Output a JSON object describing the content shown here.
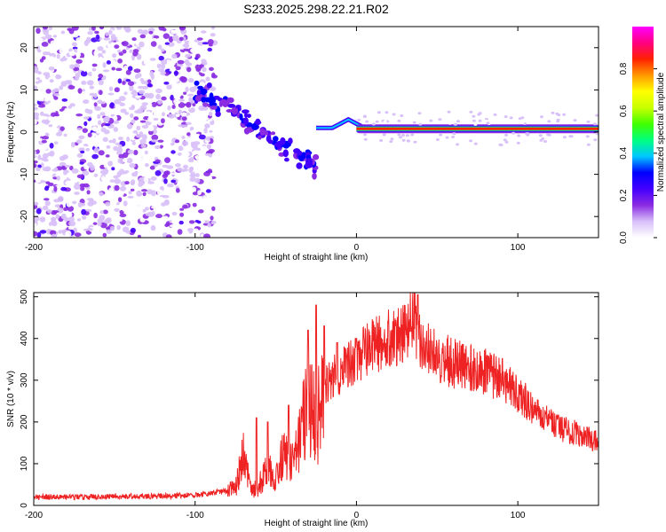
{
  "title": "S233.2025.298.22.21.R02",
  "colors": {
    "snr_line": "#ee2222",
    "frame": "#000000",
    "background": "#ffffff"
  },
  "chart_data": [
    {
      "type": "heatmap",
      "name": "spectrogram",
      "xlabel": "Height of straight line (km)",
      "ylabel": "Frequency (Hz)",
      "xlim": [
        -200,
        150
      ],
      "ylim": [
        -25,
        25
      ],
      "x_ticks": [
        "-200",
        "-100",
        "0",
        "100"
      ],
      "y_ticks": [
        "-20",
        "-10",
        "0",
        "10",
        "20"
      ],
      "colorbar": {
        "label": "Normalized spectral amplitude",
        "range": [
          0,
          1
        ],
        "ticks": [
          "0.0",
          "0.2",
          "0.4",
          "0.6",
          "0.8"
        ],
        "colormap": [
          "#ffffff",
          "#d8c0f8",
          "#8a2be2",
          "#4400ff",
          "#0000ff",
          "#00c8ff",
          "#00ff80",
          "#40ff00",
          "#c8ff00",
          "#ffff00",
          "#ff9900",
          "#ff2200",
          "#ff0080",
          "#ff00ff"
        ]
      },
      "features": {
        "noise_region_x": [
          -200,
          -80
        ],
        "noise_cutoff_x": -88,
        "descending_trace": [
          [
            -100,
            9
          ],
          [
            -90,
            8
          ],
          [
            -80,
            6
          ],
          [
            -70,
            3
          ],
          [
            -60,
            1
          ],
          [
            -50,
            -3
          ],
          [
            -40,
            -5
          ],
          [
            -30,
            -6
          ],
          [
            -25,
            -8
          ]
        ],
        "jagged_trace": [
          [
            -25,
            1
          ],
          [
            -20,
            1
          ],
          [
            -15,
            1
          ],
          [
            -10,
            2
          ],
          [
            -5,
            3
          ],
          [
            0,
            2
          ],
          [
            5,
            1
          ]
        ],
        "carrier_start_x": 0,
        "carrier_end_x": 150,
        "carrier_freq_hz": 0.8,
        "carrier_amplitude": 0.9
      }
    },
    {
      "type": "line",
      "name": "snr",
      "xlabel": "Height of straight line (km)",
      "ylabel": "SNR (10 * v/v)",
      "xlim": [
        -200,
        150
      ],
      "ylim": [
        0,
        510
      ],
      "x_ticks": [
        "-200",
        "-100",
        "0",
        "100"
      ],
      "y_ticks": [
        "0",
        "100",
        "200",
        "300",
        "400",
        "500"
      ],
      "series": [
        {
          "color": "#ee2222",
          "x": [
            -200,
            -180,
            -160,
            -140,
            -120,
            -100,
            -90,
            -80,
            -75,
            -70,
            -65,
            -60,
            -55,
            -50,
            -45,
            -40,
            -35,
            -30,
            -25,
            -20,
            -15,
            -10,
            -5,
            0,
            10,
            20,
            30,
            35,
            40,
            50,
            60,
            70,
            80,
            90,
            100,
            110,
            120,
            130,
            140,
            150
          ],
          "y": [
            20,
            20,
            20,
            22,
            22,
            25,
            30,
            35,
            40,
            120,
            30,
            50,
            90,
            70,
            120,
            100,
            170,
            250,
            200,
            280,
            310,
            320,
            340,
            350,
            380,
            400,
            410,
            460,
            380,
            360,
            340,
            330,
            320,
            300,
            270,
            230,
            200,
            180,
            170,
            150
          ]
        }
      ],
      "spikes": [
        [
          -62,
          210
        ],
        [
          -55,
          200
        ],
        [
          -42,
          240
        ],
        [
          -30,
          420
        ],
        [
          -25,
          480
        ],
        [
          -20,
          430
        ],
        [
          -12,
          390
        ],
        [
          0,
          400
        ],
        [
          38,
          505
        ]
      ]
    }
  ]
}
